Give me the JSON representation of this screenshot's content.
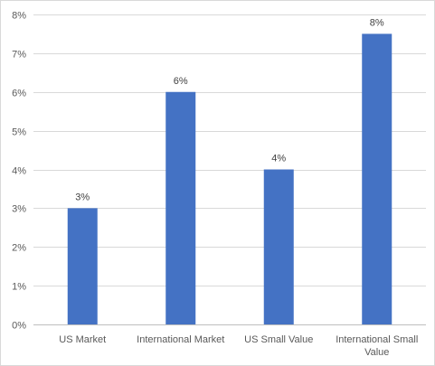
{
  "chart_data": {
    "type": "bar",
    "categories": [
      "US Market",
      "International Market",
      "US Small Value",
      "International Small Value"
    ],
    "category_lines": [
      [
        "US Market"
      ],
      [
        "International Market"
      ],
      [
        "US Small Value"
      ],
      [
        "International Small",
        "Value"
      ]
    ],
    "values": [
      3,
      6,
      4,
      7.5
    ],
    "data_labels": [
      "3%",
      "6%",
      "4%",
      "8%"
    ],
    "title": "",
    "xlabel": "",
    "ylabel": "",
    "ylim": [
      0,
      8
    ],
    "ytick_values": [
      0,
      1,
      2,
      3,
      4,
      5,
      6,
      7,
      8
    ],
    "ytick_labels": [
      "0%",
      "1%",
      "2%",
      "3%",
      "4%",
      "5%",
      "6%",
      "7%",
      "8%"
    ],
    "grid": true,
    "legend": "none",
    "colors": {
      "bar": "#4472C4",
      "grid": "#d9d9d9",
      "axis": "#bfbfbf",
      "tick_text": "#595959",
      "label_text": "#404040"
    }
  }
}
